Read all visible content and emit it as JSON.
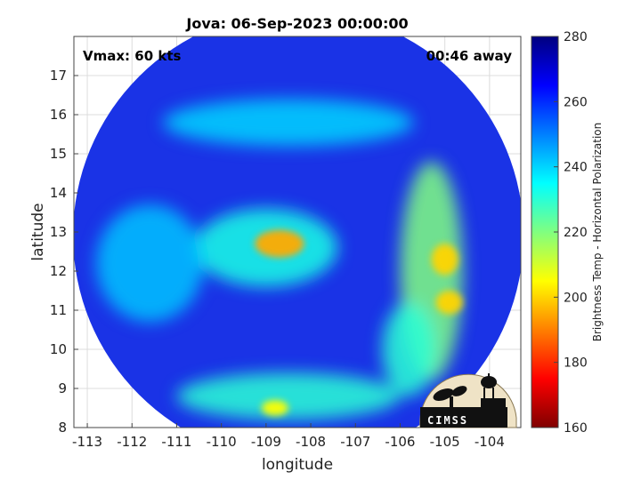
{
  "chart_data": {
    "type": "heatmap",
    "title": "Jova: 06-Sep-2023 00:00:00",
    "annotations": {
      "left": "Vmax: 60 kts",
      "right": "00:46 away"
    },
    "xlabel": "longitude",
    "ylabel": "latitude",
    "xlim": [
      -113.3,
      -103.3
    ],
    "ylim": [
      8,
      18
    ],
    "xticks": [
      -113,
      -112,
      -111,
      -110,
      -109,
      -108,
      -107,
      -106,
      -105,
      -104
    ],
    "yticks": [
      8,
      9,
      10,
      11,
      12,
      13,
      14,
      15,
      16,
      17
    ],
    "grid": true,
    "swath": {
      "center_lon": -108.3,
      "center_lat": 12.3,
      "radius_deg": 5.6
    },
    "storm_center": {
      "lon": -108.7,
      "lat": 12.7
    },
    "features": [
      {
        "name": "eyewall",
        "lon": -108.7,
        "lat": 12.7,
        "rx": 0.55,
        "ry": 0.35,
        "tb": 195
      },
      {
        "name": "inner ring",
        "lon": -109.0,
        "lat": 12.6,
        "rx": 1.6,
        "ry": 1.0,
        "tb": 232
      },
      {
        "name": "east band",
        "lon": -105.3,
        "lat": 12.0,
        "rx": 0.7,
        "ry": 2.8,
        "tb": 220
      },
      {
        "name": "east band core 1",
        "lon": -105.0,
        "lat": 12.3,
        "rx": 0.3,
        "ry": 0.4,
        "tb": 200
      },
      {
        "name": "east band core 2",
        "lon": -104.9,
        "lat": 11.2,
        "rx": 0.3,
        "ry": 0.3,
        "tb": 200
      },
      {
        "name": "east band tail",
        "lon": -105.8,
        "lat": 10.0,
        "rx": 0.6,
        "ry": 1.2,
        "tb": 230
      },
      {
        "name": "northern arc",
        "lon": -108.5,
        "lat": 15.8,
        "rx": 2.8,
        "ry": 0.6,
        "tb": 240
      },
      {
        "name": "southern arc",
        "lon": -108.5,
        "lat": 8.8,
        "rx": 2.5,
        "ry": 0.6,
        "tb": 230
      },
      {
        "name": "southern cells",
        "lon": -108.8,
        "lat": 8.5,
        "rx": 0.3,
        "ry": 0.2,
        "tb": 205
      },
      {
        "name": "western band",
        "lon": -111.6,
        "lat": 12.2,
        "rx": 1.2,
        "ry": 1.5,
        "tb": 242
      }
    ],
    "colorbar": {
      "label": "Brightness Temp - Horizontal Polarization",
      "min": 160,
      "max": 280,
      "ticks": [
        160,
        180,
        200,
        220,
        240,
        260,
        280
      ],
      "colormap": "jet"
    },
    "logo_text": "CIMSS"
  }
}
